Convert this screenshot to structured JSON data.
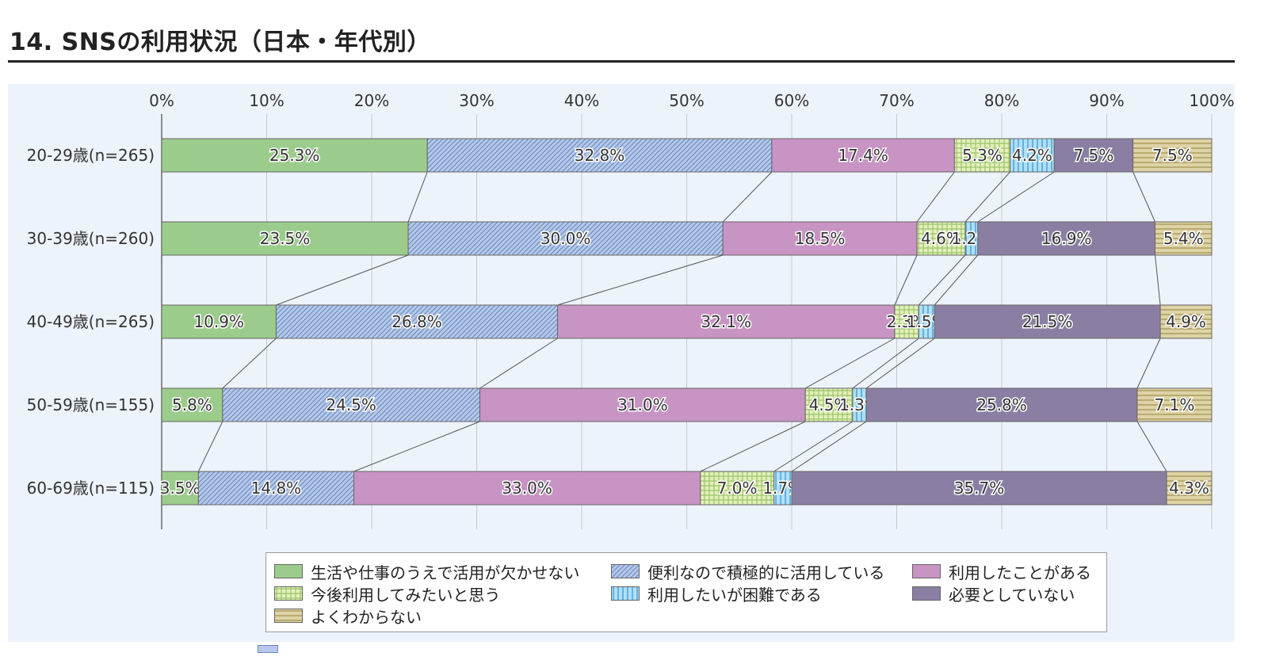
{
  "page": {
    "title": "14. SNSの利用状況（日本・年代別）"
  },
  "chart_data": {
    "type": "bar",
    "orientation": "horizontal",
    "stacked": "percent",
    "categories": [
      "20-29歳(n=265)",
      "30-39歳(n=260)",
      "40-49歳(n=265)",
      "50-59歳(n=155)",
      "60-69歳(n=115)"
    ],
    "xticks": [
      "0%",
      "10%",
      "20%",
      "30%",
      "40%",
      "50%",
      "60%",
      "70%",
      "80%",
      "90%",
      "100%"
    ],
    "xlim": [
      0,
      100
    ],
    "grid": true,
    "legend_position": "bottom",
    "connector_lines": true,
    "series": [
      {
        "name": "生活や仕事のうえで活用が欠かせない",
        "color": "#9ccc8c",
        "pattern": "solid",
        "values": [
          25.3,
          23.5,
          10.9,
          5.8,
          3.5
        ],
        "labels": [
          "25.3%",
          "23.5%",
          "10.9%",
          "5.8%",
          "3.5%"
        ]
      },
      {
        "name": "便利なので積極的に活用している",
        "color": "#b3c9ea",
        "pattern": "diagonal",
        "values": [
          32.8,
          30.0,
          26.8,
          24.5,
          14.8
        ],
        "labels": [
          "32.8%",
          "30.0%",
          "26.8%",
          "24.5%",
          "14.8%"
        ]
      },
      {
        "name": "利用したことがある",
        "color": "#c894c4",
        "pattern": "solid",
        "values": [
          17.4,
          18.5,
          32.1,
          31.0,
          33.0
        ],
        "labels": [
          "17.4%",
          "18.5%",
          "32.1%",
          "31.0%",
          "33.0%"
        ]
      },
      {
        "name": "今後利用してみたいと思う",
        "color": "#e2f0b8",
        "pattern": "grid",
        "values": [
          5.3,
          4.6,
          2.3,
          4.5,
          7.0
        ],
        "labels": [
          "5.3%",
          "4.6%",
          "2.3%",
          "4.5%",
          "7.0%"
        ]
      },
      {
        "name": "利用したいが困難である",
        "color": "#aee0f6",
        "pattern": "vertical",
        "values": [
          4.2,
          1.2,
          1.5,
          1.3,
          1.7
        ],
        "labels": [
          "4.2%",
          "1.2%",
          "1.5%",
          "1.3%",
          "1.7%"
        ]
      },
      {
        "name": "必要としていない",
        "color": "#8a7fa2",
        "pattern": "solid",
        "values": [
          7.5,
          16.9,
          21.5,
          25.8,
          35.7
        ],
        "labels": [
          "7.5%",
          "16.9%",
          "21.5%",
          "25.8%",
          "35.7%"
        ]
      },
      {
        "name": "よくわからない",
        "color": "#ddd3a6",
        "pattern": "horizontal",
        "values": [
          7.5,
          5.4,
          4.9,
          7.1,
          4.3
        ],
        "labels": [
          "7.5%",
          "5.4%",
          "4.9%",
          "7.1%",
          "4.3%"
        ]
      }
    ]
  }
}
